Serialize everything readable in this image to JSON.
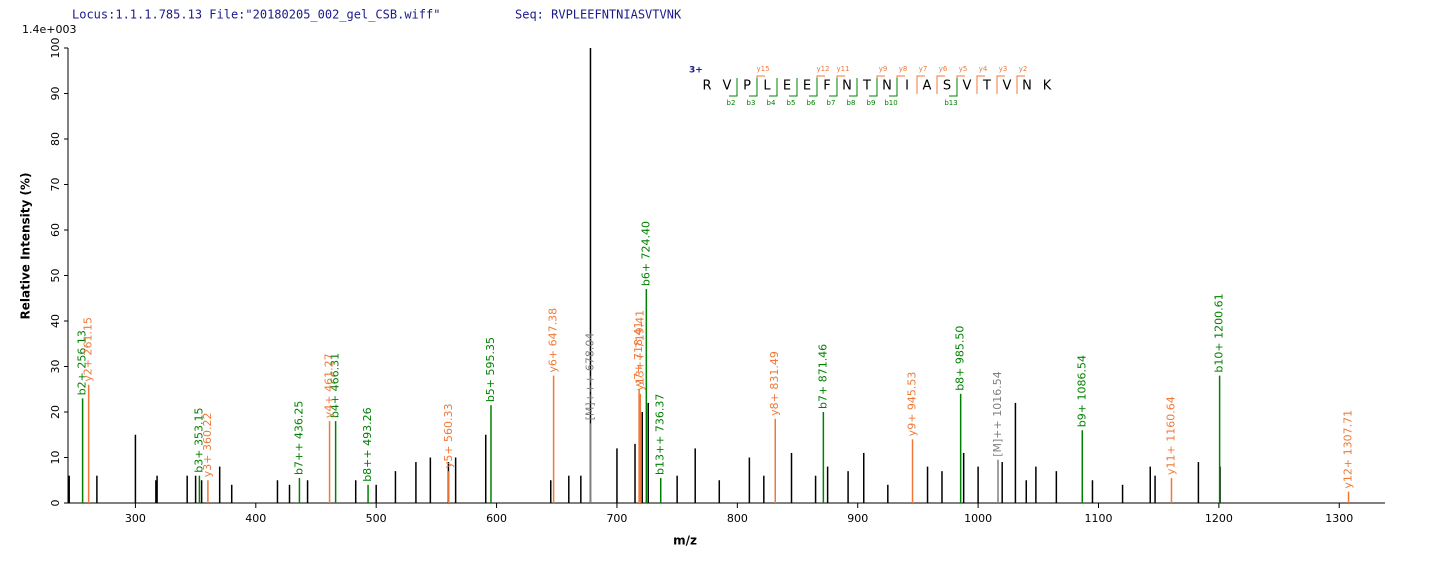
{
  "chart_data": {
    "type": "spectrum",
    "header": "Locus:1.1.1.785.13 File:\"20180205_002_gel_CSB.wiff\"",
    "seq_label": "Seq: RVPLEEFNTNIASVTVNK",
    "scale_label": "1.4e+003",
    "x_label": "m/z",
    "y_label": "Relative   Intensity (%)",
    "xlim": [
      244,
      1338
    ],
    "ylim": [
      0,
      100
    ],
    "xticks": [
      300,
      400,
      500,
      600,
      700,
      800,
      900,
      1000,
      1100,
      1200,
      1300
    ],
    "yticks": [
      0,
      10,
      20,
      30,
      40,
      50,
      60,
      70,
      80,
      90,
      100
    ],
    "sequence": {
      "charge": "3+",
      "residues": [
        "R",
        "V",
        "P",
        "L",
        "E",
        "E",
        "F",
        "N",
        "T",
        "N",
        "I",
        "A",
        "S",
        "V",
        "T",
        "V",
        "N",
        "K"
      ],
      "y_ions": [
        "y15",
        "y12",
        "y11",
        "y9",
        "y8",
        "y7",
        "y6",
        "y5",
        "y4",
        "y3",
        "y2"
      ],
      "b_ions": [
        "b2",
        "b3",
        "b4",
        "b5",
        "b6",
        "b7",
        "b8",
        "b9",
        "b10",
        "b13"
      ]
    },
    "series": [
      {
        "color": "#000000",
        "x": [
          245,
          268,
          300,
          317,
          318,
          343,
          350,
          355,
          370,
          380,
          418,
          428,
          443,
          483,
          500,
          516,
          533,
          545,
          560,
          566,
          591,
          645,
          660,
          670,
          678,
          700,
          715,
          721,
          726,
          750,
          765,
          785,
          810,
          822,
          845,
          865,
          875,
          892,
          905,
          925,
          958,
          970,
          988,
          1000,
          1020,
          1031,
          1040,
          1048,
          1065,
          1095,
          1120,
          1143,
          1147,
          1183,
          1201
        ],
        "values": [
          6,
          6,
          15,
          5,
          6,
          6,
          6,
          5,
          8,
          4,
          5,
          4,
          5,
          5,
          4,
          7,
          9,
          10,
          9,
          10,
          15,
          5,
          6,
          6,
          100,
          12,
          13,
          20,
          22,
          6,
          12,
          5,
          10,
          6,
          11,
          6,
          8,
          7,
          11,
          4,
          8,
          7,
          11,
          8,
          9,
          22,
          5,
          8,
          7,
          5,
          4,
          8,
          6,
          9,
          8
        ]
      },
      {
        "color": "#008000",
        "x": [
          256.13,
          353.15,
          436.25,
          466.31,
          493.26,
          595.35,
          724.4,
          736.37,
          871.46,
          985.5,
          1086.54,
          1200.61
        ],
        "values": [
          23,
          6,
          5.5,
          18,
          4,
          21.5,
          47,
          5.5,
          20,
          24,
          16,
          28
        ],
        "annotations": [
          "b2+ 256.13",
          "b3+ 353.15",
          "b7++ 436.25",
          "b4+ 466.31",
          "b8++ 493.26",
          "b5+ 595.35",
          "b6+ 724.40",
          "b13++ 736.37",
          "b7+ 871.46",
          "b8+ 985.50",
          "b9+ 1086.54",
          "b10+ 1200.61"
        ]
      },
      {
        "color": "#f07838",
        "x": [
          261.15,
          360.22,
          461.27,
          560.33,
          647.38,
          718.41,
          719.41,
          831.49,
          945.53,
          1160.64,
          1307.71
        ],
        "values": [
          26,
          5,
          18,
          7,
          28,
          25,
          24,
          18.5,
          14,
          5.5,
          2.5
        ],
        "annotations": [
          "y2+ 261.15",
          "y3+ 360.22",
          "y4+ 461.27",
          "y5+ 560.33",
          "y6+ 647.38",
          "y7+ 718.41",
          "y13++ 719.41",
          "y8+ 831.49",
          "y9+ 945.53",
          "y11+ 1160.64",
          "y12+ 1307.71"
        ]
      },
      {
        "color": "#808080",
        "x": [
          678.04,
          1016.54
        ],
        "values": [
          17.5,
          9.5
        ],
        "annotations": [
          "[M]+++ 678.04",
          "[M]++ 1016.54"
        ]
      }
    ]
  }
}
